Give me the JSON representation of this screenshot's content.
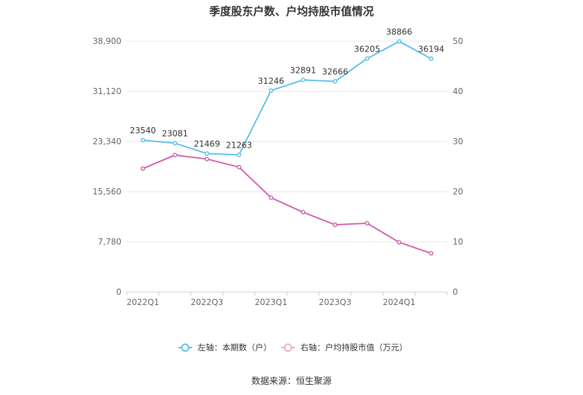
{
  "chart_data": {
    "type": "line",
    "title": "季度股东户数、户均持股市值情况",
    "categories": [
      "2022Q1",
      "2022Q2",
      "2022Q3",
      "2022Q4",
      "2023Q1",
      "2023Q2",
      "2023Q3",
      "2023Q4",
      "2024Q1",
      "2024Q2"
    ],
    "x_tick_labels": [
      "2022Q1",
      "2022Q3",
      "2023Q1",
      "2023Q3",
      "2024Q1"
    ],
    "y_left": {
      "ticks": [
        "0",
        "7,780",
        "15,560",
        "23,340",
        "31,120",
        "38,900"
      ],
      "range": [
        0,
        38900
      ]
    },
    "y_right": {
      "ticks": [
        "0",
        "10",
        "20",
        "30",
        "40",
        "50"
      ],
      "range": [
        0,
        50
      ]
    },
    "grid": true,
    "legend_position": "bottom",
    "series": [
      {
        "name": "左轴：本期数（户）",
        "axis": "left",
        "color": "#5bc0eb",
        "values": [
          23540,
          23081,
          21469,
          21263,
          31246,
          32891,
          32666,
          36205,
          38866,
          36194
        ],
        "labels": [
          "23540",
          "23081",
          "21469",
          "21263",
          "31246",
          "32891",
          "32666",
          "36205",
          "38866",
          "36194"
        ]
      },
      {
        "name": "右轴：户均持股市值（万元）",
        "axis": "right",
        "color": "#d15fab",
        "values": [
          24.6,
          27.3,
          26.5,
          24.9,
          18.8,
          15.9,
          13.4,
          13.7,
          9.9,
          7.7
        ]
      }
    ],
    "source": "数据来源：恒生聚源"
  }
}
